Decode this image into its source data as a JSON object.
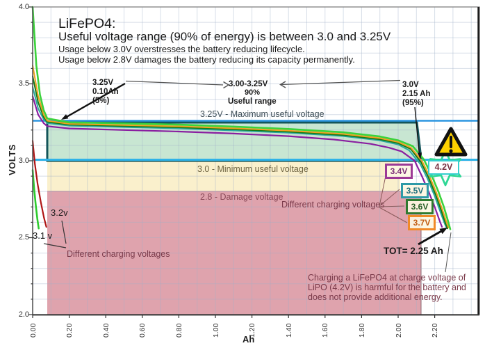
{
  "header": {
    "line1": "LiFePO4:",
    "line2": "Useful voltage range (90% of energy) is between 3.0 and 3.25V",
    "line3": "Usage below 3.0V overstresses the battery reducing lifecycle.",
    "line4": "Usage below 2.8V damages the battery reducing its capacity permanently."
  },
  "axes": {
    "y_title": "VOLTS",
    "x_title": "Ah",
    "y_ticks": [
      "4.0",
      "3.5",
      "3.0",
      "2.5",
      "2.0"
    ],
    "x_ticks": [
      "0.00",
      "0.20",
      "0.40",
      "0.60",
      "0.80",
      "1.00",
      "1.20",
      "1.40",
      "1.60",
      "1.80",
      "2.00",
      "2.20"
    ]
  },
  "annotations": {
    "left_marker": {
      "l1": "3.25V",
      "l2": "0.10Ah",
      "l3": "(5%)"
    },
    "range_marker": {
      "l1": "3.00-3.25V",
      "l2": "90%",
      "l3": "Useful range"
    },
    "right_marker": {
      "l1": "3.0V",
      "l2": "2.15 Ah",
      "l3": "(95%)"
    },
    "max_line_label": "3.25V - Maximum useful voltage",
    "min_line_label": "3.0 - Minimum useful voltage",
    "damage_line_label": "2.8 - Damage voltage",
    "charging_voltages_right": "Different charging voltages",
    "charging_voltages_left": "Different charging voltages",
    "curve_label_32": "3.2v",
    "curve_label_31": "3.1 v",
    "total_label": "TOT= 2.25 Ah",
    "lipo_label": "4.2V",
    "note_l1": "Charging a LiFePO4 at charge voltage of",
    "note_l2": "LiPO (4.2V) is harmful for the battery and",
    "note_l3": "does not provide additional energy."
  },
  "legend": {
    "items": [
      {
        "label": "3.4V",
        "color": "#9c3a96",
        "text_color": "#7c2f78"
      },
      {
        "label": "3.5V",
        "color": "#2e9aa8",
        "text_color": "#20707c"
      },
      {
        "label": "3.6V",
        "color": "#2f7a2f",
        "text_color": "#275f27"
      },
      {
        "label": "3.7V",
        "color": "#f08a28",
        "text_color": "#c25c12"
      }
    ]
  },
  "colors": {
    "max_line": "#2b95e0",
    "min_line": "#2fb3e8",
    "useful_band_fill": "#c8e6d2",
    "useful_band_border": "#14555a",
    "warning_band_fill": "#faf0cc",
    "damage_band_fill": "#dfa3ad",
    "star": "#2ed795",
    "lipo_border": "#35cfcf",
    "warning_triangle": "#ffd200"
  },
  "chart_data": {
    "type": "line",
    "title": "LiFePO4: Useful voltage range (90% of energy) is between 3.0 and 3.25V",
    "xlabel": "Ah",
    "ylabel": "VOLTS",
    "xlim": [
      0,
      2.4
    ],
    "ylim": [
      2.0,
      4.0
    ],
    "grid": true,
    "x_tick_step": 0.2,
    "y_tick_step": 0.5,
    "reference_lines": [
      {
        "y": 3.25,
        "label": "3.25V - Maximum useful voltage"
      },
      {
        "y": 3.0,
        "label": "3.0 - Minimum useful voltage"
      },
      {
        "y": 2.8,
        "label": "2.8 - Damage voltage"
      }
    ],
    "regions": [
      {
        "name": "useful-range",
        "volts": [
          3.0,
          3.25
        ],
        "ah": [
          0.08,
          2.15
        ],
        "fill": "#c8e6d2"
      },
      {
        "name": "below-minimum",
        "volts": [
          2.8,
          3.0
        ],
        "fill": "#faf0cc"
      },
      {
        "name": "damage",
        "volts": [
          2.0,
          2.8
        ],
        "fill": "#dfa3ad"
      }
    ],
    "key_points": [
      {
        "label": "5% of energy",
        "ah": 0.1,
        "volts": 3.25
      },
      {
        "label": "95% of energy",
        "ah": 2.15,
        "volts": 3.0
      },
      {
        "label": "total capacity",
        "ah": 2.25
      }
    ],
    "series": [
      {
        "name": "3.4V charge",
        "color": "#8a1fa0",
        "width": 2.2,
        "points": [
          [
            0,
            3.42
          ],
          [
            0.03,
            3.3
          ],
          [
            0.06,
            3.245
          ],
          [
            0.08,
            3.225
          ],
          [
            0.2,
            3.21
          ],
          [
            0.5,
            3.2
          ],
          [
            0.8,
            3.19
          ],
          [
            1.1,
            3.177
          ],
          [
            1.4,
            3.16
          ],
          [
            1.65,
            3.138
          ],
          [
            1.85,
            3.11
          ],
          [
            1.95,
            3.085
          ],
          [
            2.02,
            3.06
          ],
          [
            2.09,
            3.0
          ],
          [
            2.13,
            2.9
          ],
          [
            2.17,
            2.79
          ],
          [
            2.2,
            2.7
          ],
          [
            2.23,
            2.6
          ],
          [
            2.24,
            2.57
          ]
        ]
      },
      {
        "name": "3.5V charge",
        "color": "#2aa8a0",
        "width": 2,
        "points": [
          [
            0,
            3.48
          ],
          [
            0.03,
            3.34
          ],
          [
            0.06,
            3.27
          ],
          [
            0.08,
            3.245
          ],
          [
            0.2,
            3.228
          ],
          [
            0.5,
            3.219
          ],
          [
            0.8,
            3.21
          ],
          [
            1.1,
            3.197
          ],
          [
            1.4,
            3.182
          ],
          [
            1.7,
            3.16
          ],
          [
            1.9,
            3.132
          ],
          [
            2.0,
            3.106
          ],
          [
            2.06,
            3.068
          ],
          [
            2.12,
            2.98
          ],
          [
            2.16,
            2.885
          ],
          [
            2.2,
            2.77
          ],
          [
            2.23,
            2.67
          ],
          [
            2.255,
            2.59
          ],
          [
            2.265,
            2.565
          ]
        ]
      },
      {
        "name": "3.6V charge",
        "color": "#157a15",
        "width": 2,
        "points": [
          [
            0,
            3.55
          ],
          [
            0.03,
            3.38
          ],
          [
            0.06,
            3.285
          ],
          [
            0.08,
            3.253
          ],
          [
            0.2,
            3.235
          ],
          [
            0.5,
            3.226
          ],
          [
            0.8,
            3.217
          ],
          [
            1.1,
            3.204
          ],
          [
            1.4,
            3.189
          ],
          [
            1.7,
            3.167
          ],
          [
            1.9,
            3.14
          ],
          [
            2.0,
            3.115
          ],
          [
            2.07,
            3.075
          ],
          [
            2.125,
            2.99
          ],
          [
            2.165,
            2.895
          ],
          [
            2.205,
            2.78
          ],
          [
            2.235,
            2.68
          ],
          [
            2.26,
            2.59
          ],
          [
            2.27,
            2.56
          ]
        ]
      },
      {
        "name": "3.7V charge",
        "color": "#f0a020",
        "width": 2,
        "points": [
          [
            0,
            3.62
          ],
          [
            0.03,
            3.42
          ],
          [
            0.06,
            3.3
          ],
          [
            0.08,
            3.26
          ],
          [
            0.2,
            3.24
          ],
          [
            0.5,
            3.232
          ],
          [
            0.8,
            3.224
          ],
          [
            1.1,
            3.211
          ],
          [
            1.4,
            3.196
          ],
          [
            1.7,
            3.174
          ],
          [
            1.9,
            3.147
          ],
          [
            2.0,
            3.122
          ],
          [
            2.07,
            3.085
          ],
          [
            2.13,
            3.0
          ],
          [
            2.17,
            2.905
          ],
          [
            2.21,
            2.79
          ],
          [
            2.24,
            2.69
          ],
          [
            2.265,
            2.6
          ],
          [
            2.275,
            2.565
          ]
        ]
      },
      {
        "name": "4.2V charge",
        "color": "#3bd23b",
        "width": 2.6,
        "points": [
          [
            0,
            4.0
          ],
          [
            0.02,
            3.62
          ],
          [
            0.04,
            3.43
          ],
          [
            0.06,
            3.33
          ],
          [
            0.08,
            3.275
          ],
          [
            0.2,
            3.25
          ],
          [
            0.5,
            3.243
          ],
          [
            0.8,
            3.235
          ],
          [
            1.1,
            3.222
          ],
          [
            1.4,
            3.207
          ],
          [
            1.7,
            3.185
          ],
          [
            1.9,
            3.158
          ],
          [
            2.0,
            3.133
          ],
          [
            2.08,
            3.095
          ],
          [
            2.14,
            3.01
          ],
          [
            2.18,
            2.915
          ],
          [
            2.22,
            2.8
          ],
          [
            2.25,
            2.7
          ],
          [
            2.275,
            2.6
          ],
          [
            2.285,
            2.555
          ]
        ]
      },
      {
        "name": "3.2V charge",
        "color": "#b01515",
        "width": 2.2,
        "points": [
          [
            0,
            3.13
          ],
          [
            0.012,
            2.98
          ],
          [
            0.027,
            2.85
          ],
          [
            0.045,
            2.73
          ],
          [
            0.062,
            2.63
          ],
          [
            0.075,
            2.57
          ]
        ]
      },
      {
        "name": "3.1V charge",
        "color": "#2ecc2e",
        "width": 2.6,
        "points": [
          [
            0,
            2.94
          ],
          [
            0.008,
            2.82
          ],
          [
            0.017,
            2.71
          ],
          [
            0.026,
            2.62
          ],
          [
            0.033,
            2.56
          ]
        ]
      }
    ]
  }
}
